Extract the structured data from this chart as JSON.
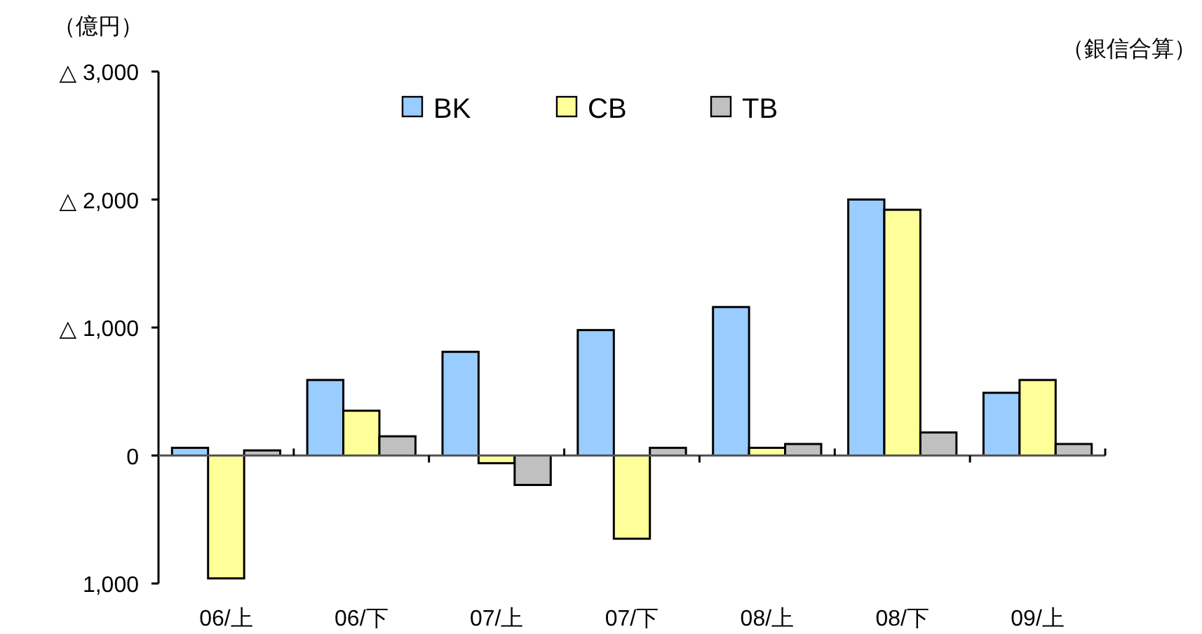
{
  "chart_data": {
    "type": "bar",
    "ylabel": "（億円）",
    "annotations": [
      "（銀信合算）"
    ],
    "categories": [
      "06/上",
      "06/下",
      "07/上",
      "07/下",
      "08/上",
      "08/下",
      "09/上"
    ],
    "series": [
      {
        "name": "BK",
        "color": "#99ccff",
        "values": [
          60,
          590,
          810,
          980,
          1160,
          2000,
          490
        ]
      },
      {
        "name": "CB",
        "color": "#ffff99",
        "values": [
          -960,
          350,
          -60,
          -650,
          60,
          1920,
          590
        ]
      },
      {
        "name": "TB",
        "color": "#c0c0c0",
        "values": [
          40,
          150,
          -230,
          60,
          90,
          180,
          90
        ]
      }
    ],
    "ylim": [
      -1000,
      3000
    ],
    "yticks": [
      {
        "value": -1000,
        "label": "1,000"
      },
      0,
      {
        "value": 1000,
        "label": "△ 1,000"
      },
      {
        "value": 2000,
        "label": "△ 2,000"
      },
      {
        "value": 3000,
        "label": "△ 3,000"
      }
    ],
    "legend": "top"
  }
}
